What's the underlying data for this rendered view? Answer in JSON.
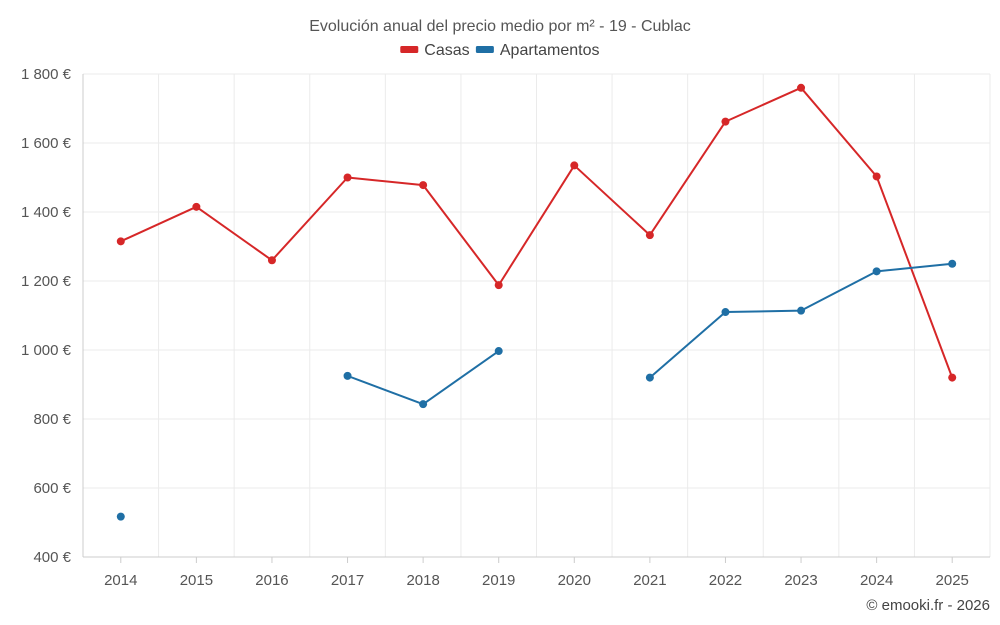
{
  "chart_data": {
    "type": "line",
    "title": "Evolución anual del precio medio por m² - 19 - Cublac",
    "categories": [
      "2014",
      "2015",
      "2016",
      "2017",
      "2018",
      "2019",
      "2020",
      "2021",
      "2022",
      "2023",
      "2024",
      "2025"
    ],
    "series": [
      {
        "name": "Casas",
        "color": "#d62728",
        "values": [
          1315,
          1415,
          1260,
          1500,
          1478,
          1188,
          1535,
          1333,
          1662,
          1760,
          1503,
          920
        ]
      },
      {
        "name": "Apartamentos",
        "color": "#1f6fa5",
        "values": [
          517,
          null,
          null,
          925,
          843,
          997,
          null,
          920,
          1110,
          1114,
          1228,
          1250
        ]
      }
    ],
    "ylim": [
      400,
      1800
    ],
    "yticks": [
      400,
      600,
      800,
      1000,
      1200,
      1400,
      1600,
      1800
    ],
    "ytick_labels": [
      "400 €",
      "600 €",
      "800 €",
      "1 000 €",
      "1 200 €",
      "1 400 €",
      "1 600 €",
      "1 800 €"
    ],
    "legend_position": "top-center",
    "grid": true,
    "xlabel": "",
    "ylabel": ""
  },
  "credit": "© emooki.fr - 2026"
}
